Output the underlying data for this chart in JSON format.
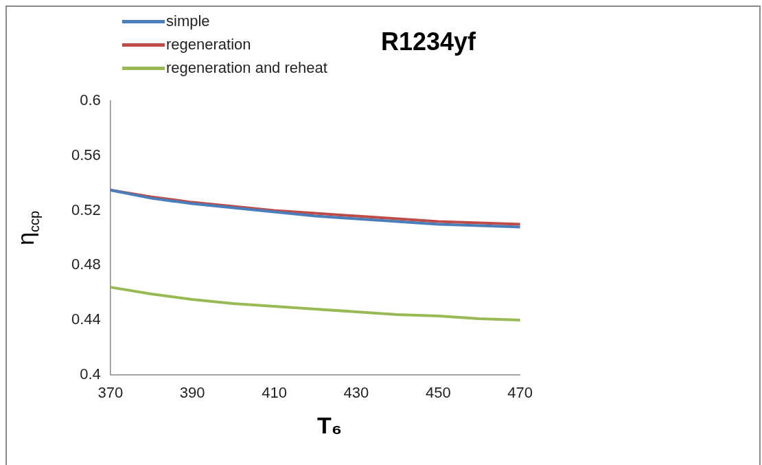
{
  "chart_data": {
    "type": "line",
    "title": "R1234yf",
    "xlabel": "T₆",
    "ylabel": "η$_{ccp}$",
    "x": [
      370,
      380,
      390,
      400,
      410,
      420,
      430,
      440,
      450,
      460,
      470
    ],
    "series": [
      {
        "name": "simple",
        "color": "#4a7ebb",
        "values": [
          0.535,
          0.529,
          0.525,
          0.522,
          0.519,
          0.516,
          0.514,
          0.512,
          0.51,
          0.509,
          0.508
        ]
      },
      {
        "name": "regeneration",
        "color": "#be4b48",
        "values": [
          0.535,
          0.53,
          0.526,
          0.523,
          0.52,
          0.518,
          0.516,
          0.514,
          0.512,
          0.511,
          0.51
        ]
      },
      {
        "name": "regeneration and reheat",
        "color": "#98b954",
        "values": [
          0.464,
          0.459,
          0.455,
          0.452,
          0.45,
          0.448,
          0.446,
          0.444,
          0.443,
          0.441,
          0.44
        ]
      }
    ],
    "xlim": [
      370,
      470
    ],
    "xticks": [
      370,
      390,
      410,
      430,
      450,
      470
    ],
    "ylim": [
      0.4,
      0.6
    ],
    "yticks": [
      0.4,
      0.44,
      0.48,
      0.52,
      0.56,
      0.6
    ],
    "grid": false,
    "legend": "top left",
    "marker": "none",
    "line_style": "solid"
  }
}
